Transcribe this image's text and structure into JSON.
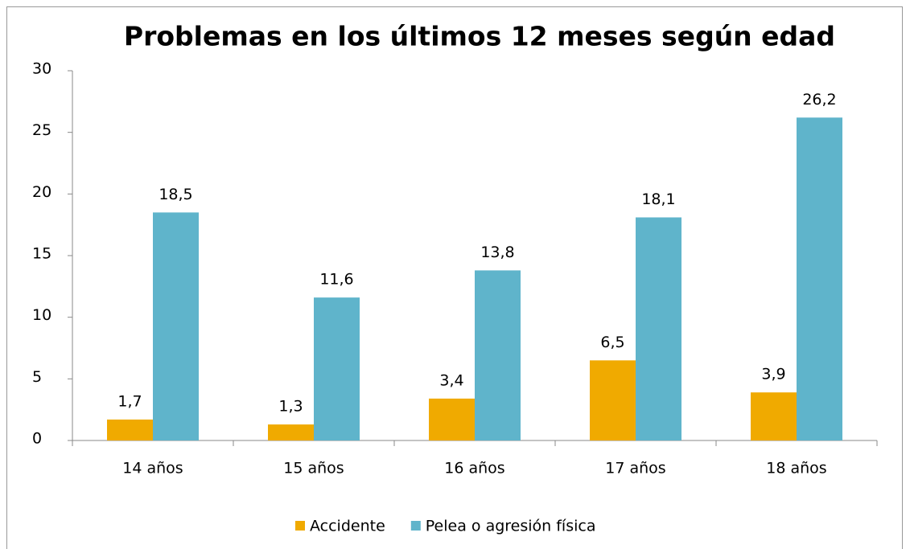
{
  "chart_data": {
    "type": "bar",
    "title": "Problemas en los últimos 12 meses según edad",
    "categories": [
      "14 años",
      "15 años",
      "16 años",
      "17 años",
      "18 años"
    ],
    "series": [
      {
        "name": "Accidente",
        "color": "#f0aa00",
        "values": [
          1.7,
          1.3,
          3.4,
          6.5,
          3.9
        ],
        "value_labels": [
          "1,7",
          "1,3",
          "3,4",
          "6,5",
          "3,9"
        ]
      },
      {
        "name": "Pelea o agresión física",
        "color": "#5fb4cb",
        "values": [
          18.5,
          11.6,
          13.8,
          18.1,
          26.2
        ],
        "value_labels": [
          "18,5",
          "11,6",
          "13,8",
          "18,1",
          "26,2"
        ]
      }
    ],
    "ylim": [
      0,
      30
    ],
    "yticks": [
      0,
      5,
      10,
      15,
      20,
      25,
      30
    ],
    "grid": false,
    "legend": "bottom"
  }
}
